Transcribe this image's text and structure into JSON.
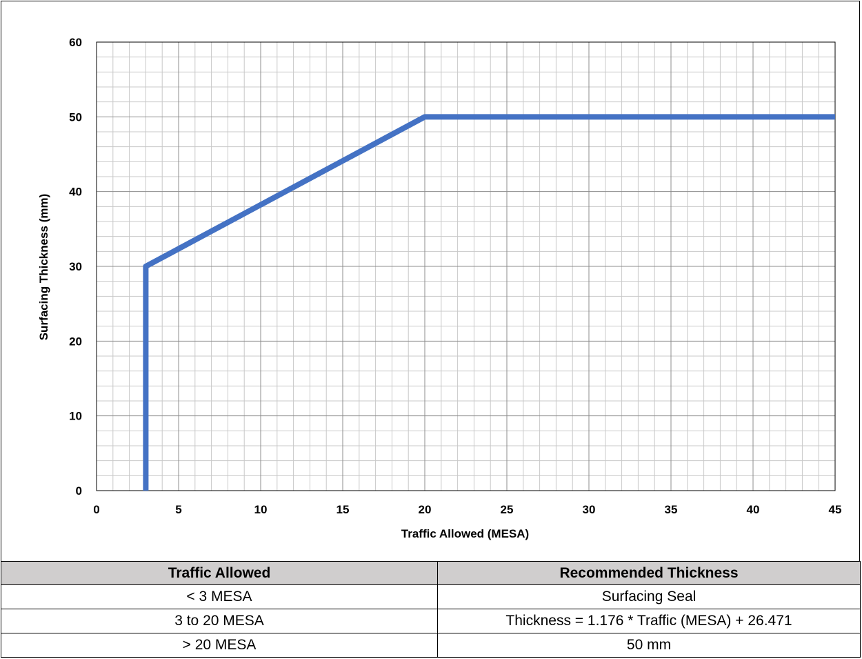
{
  "chart_data": {
    "type": "line",
    "title": "",
    "xlabel": "Traffic Allowed (MESA)",
    "ylabel": "Surfacing Thickness (mm)",
    "xlim": [
      0,
      45
    ],
    "ylim": [
      0,
      60
    ],
    "xticks": [
      0,
      5,
      10,
      15,
      20,
      25,
      30,
      35,
      40,
      45
    ],
    "yticks": [
      0,
      10,
      20,
      30,
      40,
      50,
      60
    ],
    "grid": true,
    "legend": "none",
    "series": [
      {
        "color": "#4472c4",
        "x": [
          3,
          3,
          20,
          45
        ],
        "y": [
          0,
          30,
          50,
          50
        ]
      }
    ]
  },
  "table": {
    "headers": [
      "Traffic Allowed",
      "Recommended Thickness"
    ],
    "rows": [
      [
        "< 3 MESA",
        "Surfacing Seal"
      ],
      [
        "3 to 20 MESA",
        "Thickness = 1.176 * Traffic (MESA) + 26.471"
      ],
      [
        "> 20 MESA",
        "50 mm"
      ]
    ]
  }
}
